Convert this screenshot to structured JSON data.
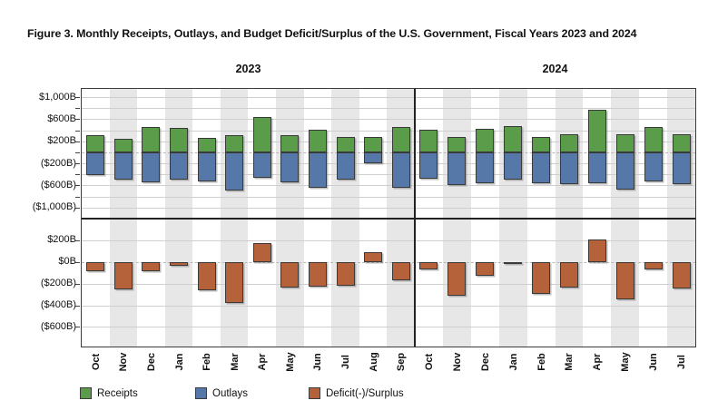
{
  "figure_title": "Figure 3. Monthly Receipts, Outlays, and Budget Deficit/Surplus of the U.S. Government, Fiscal Years 2023 and 2024",
  "chart_data": {
    "type": "bar",
    "title": "Figure 3. Monthly Receipts, Outlays, and Budget Deficit/Surplus of the U.S. Government, Fiscal Years 2023 and 2024",
    "unit": "billions of dollars",
    "panel_year_labels": [
      "2023",
      "2024"
    ],
    "legend": [
      {
        "label": "Receipts",
        "color": "#5b9c4a"
      },
      {
        "label": "Outlays",
        "color": "#5578a8"
      },
      {
        "label": "Deficit(-)/Surplus",
        "color": "#b5623a"
      }
    ],
    "axes": {
      "top_panel": {
        "ylim": [
          -1200,
          1150
        ],
        "gridline_step": 200,
        "ticks": [
          1000,
          600,
          200,
          -200,
          -600,
          -1000
        ],
        "tick_labels": [
          "$1,000B",
          "$600B",
          "$200B",
          "($200B)",
          "($600B)",
          "($1,000B)"
        ],
        "series_shown": [
          "Receipts",
          "Outlays"
        ],
        "note": "receipts plotted upward from zero, outlays plotted downward from zero"
      },
      "bottom_panel": {
        "ylim": [
          -780,
          400
        ],
        "gridline_step": 200,
        "ticks": [
          200,
          0,
          -200,
          -400,
          -600
        ],
        "tick_labels": [
          "$200B",
          "$0B",
          "($200B)",
          "($400B)",
          "($600B)"
        ],
        "series_shown": [
          "Deficit(-)/Surplus"
        ]
      }
    },
    "fiscal_years": [
      {
        "year": "2023",
        "months": [
          "Oct",
          "Nov",
          "Dec",
          "Jan",
          "Feb",
          "Mar",
          "Apr",
          "May",
          "Jun",
          "Jul",
          "Aug",
          "Sep"
        ],
        "receipts": [
          319,
          252,
          455,
          447,
          262,
          313,
          639,
          307,
          418,
          276,
          283,
          468
        ],
        "outlays": [
          406,
          501,
          540,
          486,
          525,
          691,
          462,
          548,
          646,
          497,
          194,
          638
        ],
        "deficit_surplus": [
          -88,
          -249,
          -85,
          -39,
          -262,
          -378,
          176,
          -240,
          -228,
          -221,
          89,
          -171
        ]
      },
      {
        "year": "2024",
        "months": [
          "Oct",
          "Nov",
          "Dec",
          "Jan",
          "Feb",
          "Mar",
          "Apr",
          "May",
          "Jun",
          "Jul"
        ],
        "receipts": [
          403,
          275,
          429,
          477,
          271,
          332,
          776,
          324,
          466,
          330
        ],
        "outlays": [
          470,
          589,
          559,
          499,
          567,
          569,
          567,
          671,
          533,
          574
        ],
        "deficit_surplus": [
          -67,
          -314,
          -129,
          -22,
          -296,
          -236,
          210,
          -347,
          -66,
          -244
        ]
      }
    ],
    "style": {
      "stripe_color": "#e7e7e7",
      "gridline_color": "#cfcfcf",
      "zero_line_style": "dashed",
      "zero_line_color": "#b8b8b8",
      "bar_border_color": "#3a3a3a",
      "frame_color": "#3c3c3c",
      "divider_color": "#222222"
    }
  }
}
